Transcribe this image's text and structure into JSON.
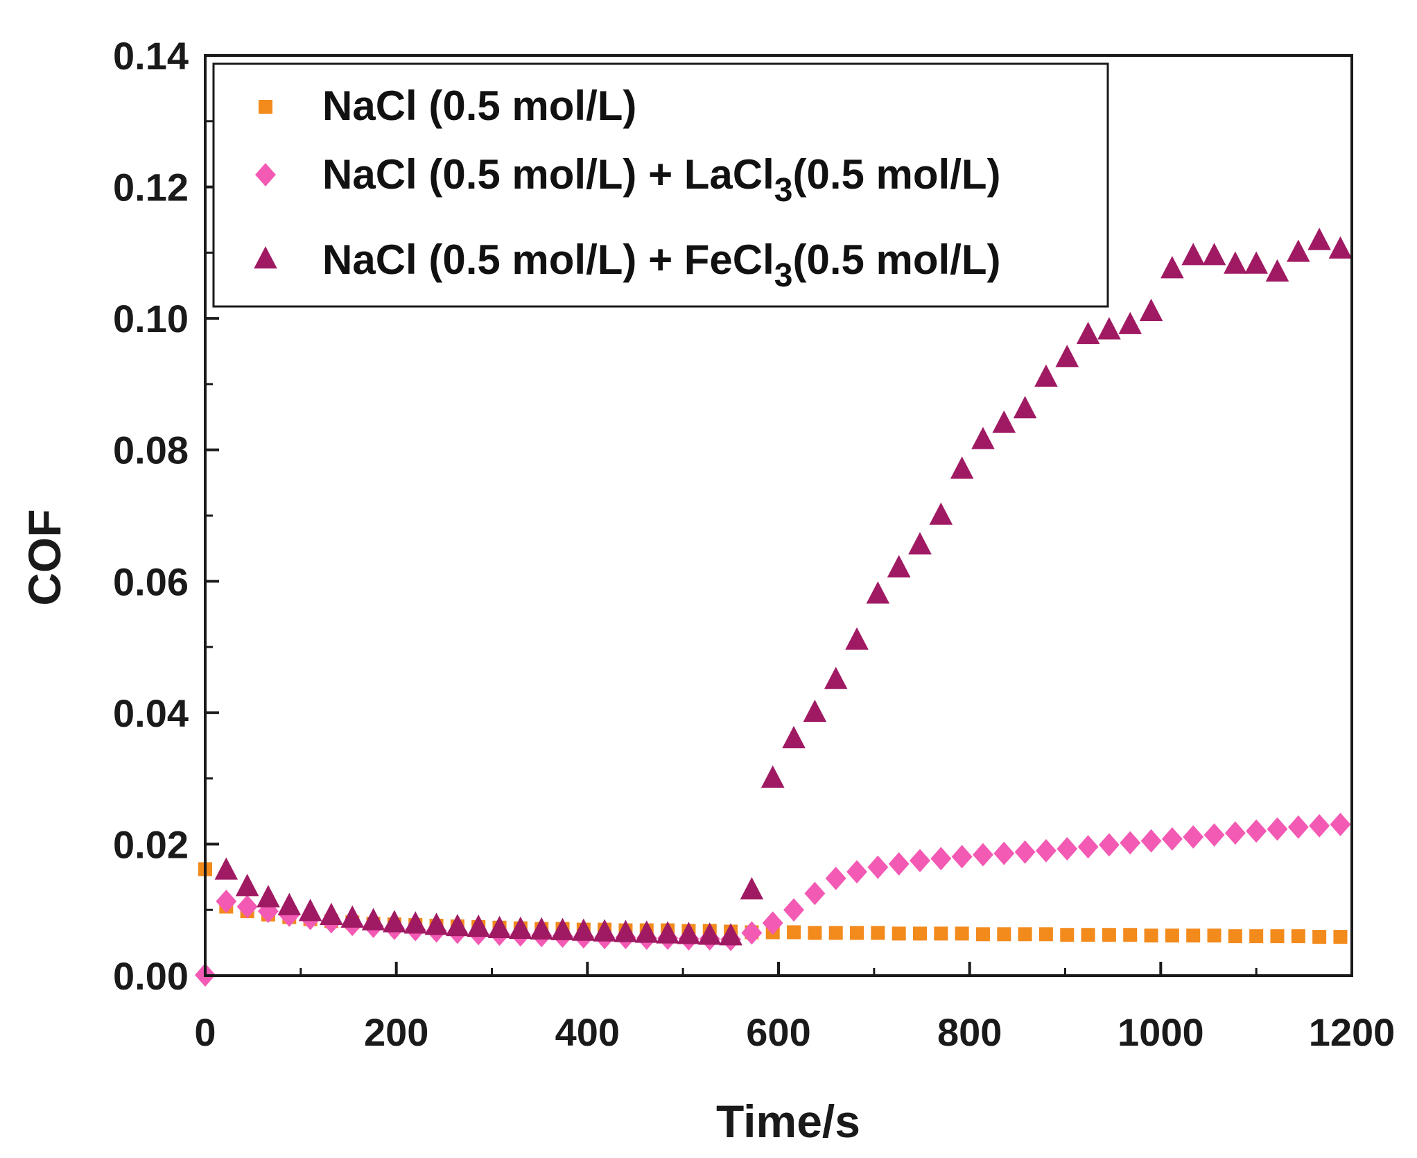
{
  "chart_data": {
    "type": "scatter",
    "title": "",
    "xlabel": "Time/s",
    "ylabel": "COF",
    "xlim": [
      0,
      1200
    ],
    "ylim": [
      0,
      0.14
    ],
    "x_ticks": [
      "0",
      "200",
      "400",
      "600",
      "800",
      "1000",
      "1200"
    ],
    "y_ticks": [
      "0.00",
      "0.02",
      "0.04",
      "0.06",
      "0.08",
      "0.10",
      "0.12",
      "0.14"
    ],
    "legend_position": "top-left",
    "grid": false,
    "series": [
      {
        "name": "NaCl (0.5 mol/L)",
        "legend": {
          "main": "NaCl (0.5 mol/L)",
          "suffix_a": "",
          "sub": "",
          "suffix_b": ""
        },
        "marker": "square",
        "color": "#f28a1c",
        "x": [
          0,
          22,
          44,
          66,
          88,
          110,
          132,
          154,
          176,
          198,
          220,
          242,
          264,
          286,
          308,
          330,
          352,
          374,
          396,
          418,
          440,
          462,
          484,
          506,
          528,
          550,
          572,
          594,
          616,
          638,
          660,
          682,
          704,
          726,
          748,
          770,
          792,
          814,
          836,
          858,
          880,
          902,
          924,
          946,
          968,
          990,
          1012,
          1034,
          1056,
          1078,
          1100,
          1122,
          1144,
          1166,
          1188
        ],
        "y": [
          0.0162,
          0.0105,
          0.0098,
          0.0093,
          0.0089,
          0.0086,
          0.0083,
          0.0081,
          0.0079,
          0.0078,
          0.0077,
          0.0076,
          0.0075,
          0.0074,
          0.0073,
          0.0072,
          0.0071,
          0.0071,
          0.007,
          0.007,
          0.0069,
          0.0069,
          0.0069,
          0.0068,
          0.0068,
          0.0067,
          0.0066,
          0.0066,
          0.0066,
          0.0065,
          0.0065,
          0.0065,
          0.0065,
          0.0064,
          0.0064,
          0.0064,
          0.0064,
          0.0063,
          0.0063,
          0.0063,
          0.0063,
          0.0062,
          0.0062,
          0.0062,
          0.0062,
          0.0061,
          0.0061,
          0.0061,
          0.0061,
          0.006,
          0.006,
          0.006,
          0.006,
          0.0059,
          0.0059
        ]
      },
      {
        "name": "NaCl (0.5 mol/L) + LaCl3(0.5 mol/L)",
        "legend": {
          "main": "NaCl (0.5 mol/L) + LaCl",
          "suffix_a": "",
          "sub": "3",
          "suffix_b": "(0.5 mol/L)"
        },
        "marker": "diamond",
        "color": "#f25ab4",
        "x": [
          0,
          22,
          44,
          66,
          88,
          110,
          132,
          154,
          176,
          198,
          220,
          242,
          264,
          286,
          308,
          330,
          352,
          374,
          396,
          418,
          440,
          462,
          484,
          506,
          528,
          550,
          572,
          594,
          616,
          638,
          660,
          682,
          704,
          726,
          748,
          770,
          792,
          814,
          836,
          858,
          880,
          902,
          924,
          946,
          968,
          990,
          1012,
          1034,
          1056,
          1078,
          1100,
          1122,
          1144,
          1166,
          1188
        ],
        "y": [
          0.0001,
          0.0113,
          0.0105,
          0.0098,
          0.0092,
          0.0087,
          0.0082,
          0.0078,
          0.0075,
          0.0072,
          0.007,
          0.0068,
          0.0066,
          0.0064,
          0.0063,
          0.0062,
          0.0061,
          0.006,
          0.0059,
          0.0058,
          0.0058,
          0.0057,
          0.0057,
          0.0056,
          0.0056,
          0.0055,
          0.0065,
          0.008,
          0.01,
          0.0125,
          0.0148,
          0.0158,
          0.0165,
          0.017,
          0.0175,
          0.0178,
          0.0181,
          0.0184,
          0.0186,
          0.0188,
          0.019,
          0.0193,
          0.0196,
          0.0199,
          0.0202,
          0.0205,
          0.0208,
          0.0211,
          0.0214,
          0.0217,
          0.022,
          0.0223,
          0.0226,
          0.0228,
          0.023
        ]
      },
      {
        "name": "NaCl (0.5 mol/L) + FeCl3(0.5 mol/L)",
        "legend": {
          "main": "NaCl (0.5 mol/L) + FeCl",
          "suffix_a": "",
          "sub": "3",
          "suffix_b": "(0.5 mol/L)"
        },
        "marker": "triangle",
        "color": "#a01a63",
        "x": [
          22,
          44,
          66,
          88,
          110,
          132,
          154,
          176,
          198,
          220,
          242,
          264,
          286,
          308,
          330,
          352,
          374,
          396,
          418,
          440,
          462,
          484,
          506,
          528,
          550,
          572,
          594,
          616,
          638,
          660,
          682,
          704,
          726,
          748,
          770,
          792,
          814,
          836,
          858,
          880,
          902,
          924,
          946,
          968,
          990,
          1012,
          1034,
          1056,
          1078,
          1100,
          1122,
          1144,
          1166,
          1188
        ],
        "y": [
          0.016,
          0.0135,
          0.0118,
          0.0106,
          0.0097,
          0.0091,
          0.0087,
          0.0083,
          0.008,
          0.0078,
          0.0076,
          0.0074,
          0.0073,
          0.0071,
          0.007,
          0.0069,
          0.0068,
          0.0067,
          0.0066,
          0.0065,
          0.0064,
          0.0063,
          0.0062,
          0.0061,
          0.006,
          0.013,
          0.03,
          0.036,
          0.04,
          0.045,
          0.051,
          0.058,
          0.062,
          0.0655,
          0.07,
          0.077,
          0.0815,
          0.084,
          0.0862,
          0.091,
          0.094,
          0.0975,
          0.0982,
          0.099,
          0.101,
          0.1075,
          0.1095,
          0.1095,
          0.1082,
          0.1082,
          0.107,
          0.11,
          0.1118,
          0.1105
        ]
      }
    ]
  }
}
